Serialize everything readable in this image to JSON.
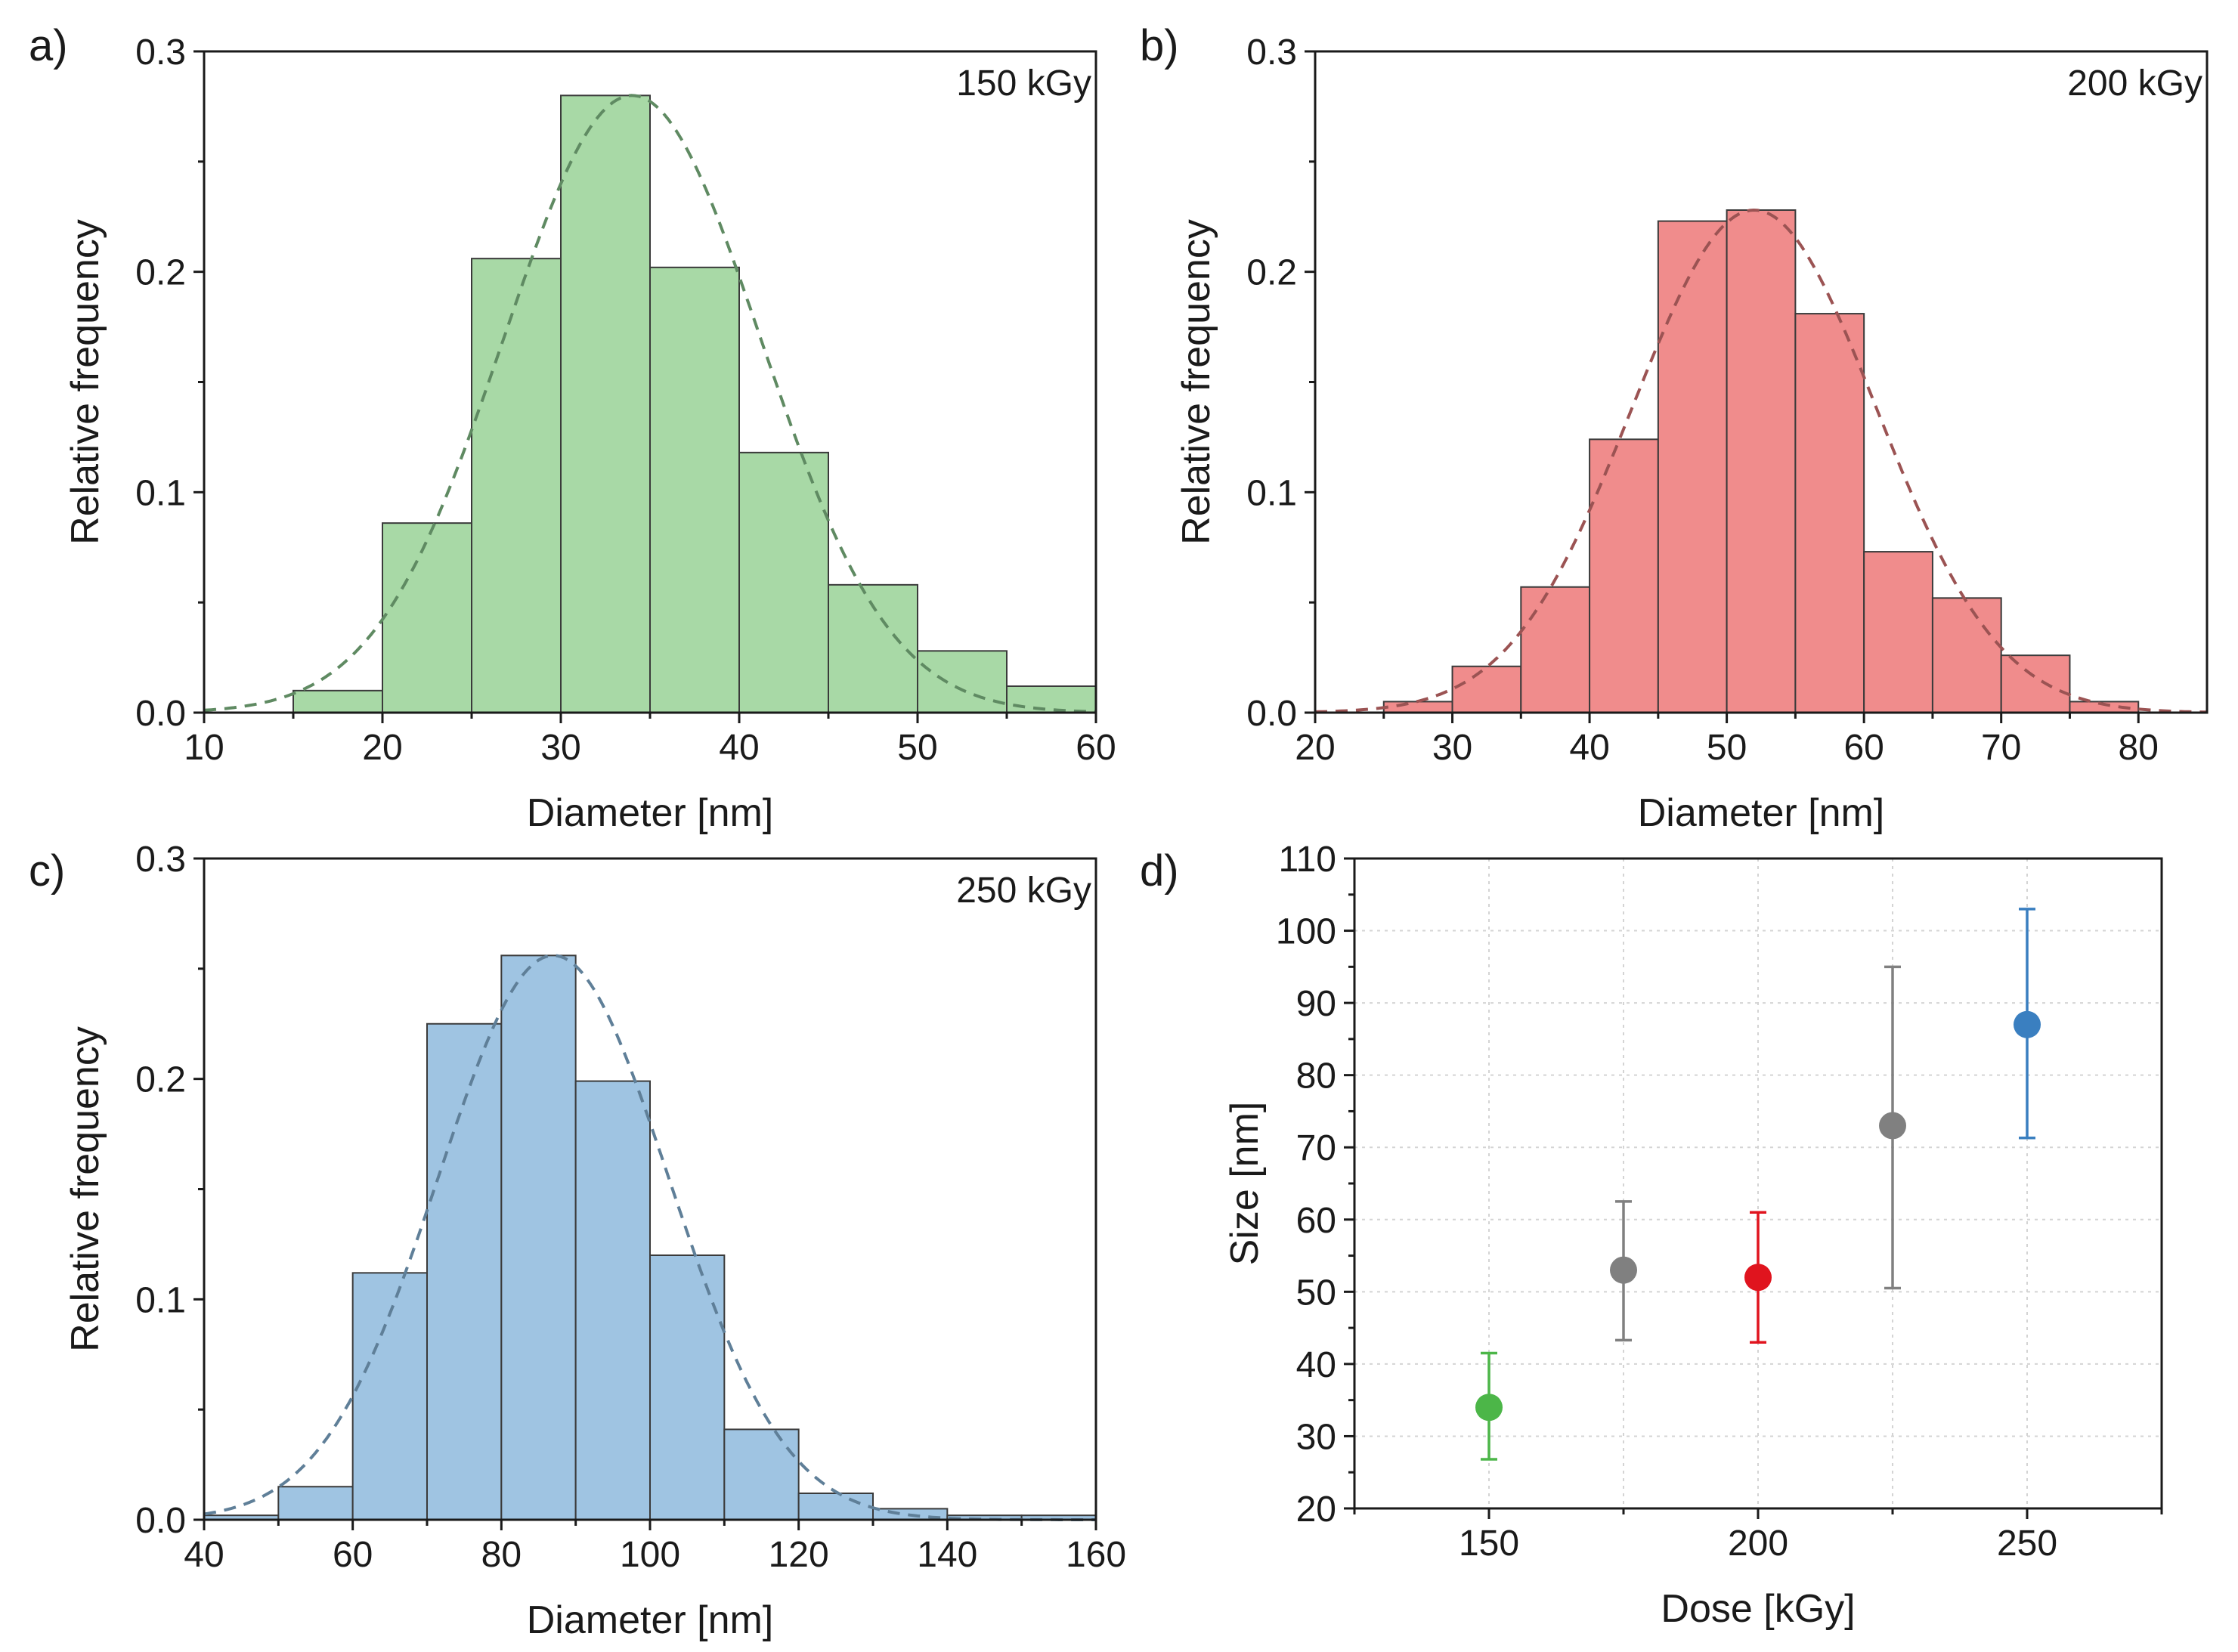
{
  "chart_data": [
    {
      "id": "a",
      "type": "bar",
      "panel_label": "a)",
      "annotation": "150 kGy",
      "xlabel": "Diameter [nm]",
      "ylabel": "Relative frequency",
      "xlim": [
        10,
        60
      ],
      "ylim": [
        0,
        0.3
      ],
      "xticks": [
        10,
        20,
        30,
        40,
        50,
        60
      ],
      "yticks": [
        0.0,
        0.1,
        0.2,
        0.3
      ],
      "bin_edges": [
        15,
        20,
        25,
        30,
        35,
        40,
        45,
        50,
        55,
        60
      ],
      "values": [
        0.01,
        0.086,
        0.206,
        0.28,
        0.202,
        0.118,
        0.058,
        0.028,
        0.012
      ],
      "fit": {
        "type": "gaussian",
        "mean": 34,
        "sd": 7.2,
        "peak": 0.28
      },
      "colors": {
        "bar": "#a8d9a6",
        "edge": "#3a3a3a",
        "fit": "#5f8a62"
      }
    },
    {
      "id": "b",
      "type": "bar",
      "panel_label": "b)",
      "annotation": "200 kGy",
      "xlabel": "Diameter [nm]",
      "ylabel": "Relative frequency",
      "xlim": [
        20,
        85
      ],
      "ylim": [
        0,
        0.3
      ],
      "xticks": [
        20,
        30,
        40,
        50,
        60,
        70,
        80
      ],
      "yticks": [
        0.0,
        0.1,
        0.2,
        0.3
      ],
      "bin_edges": [
        25,
        30,
        35,
        40,
        45,
        50,
        55,
        60,
        65,
        70,
        75,
        80
      ],
      "values": [
        0.005,
        0.021,
        0.057,
        0.124,
        0.223,
        0.228,
        0.181,
        0.073,
        0.052,
        0.026,
        0.005
      ],
      "fit": {
        "type": "gaussian",
        "mean": 52,
        "sd": 8.9,
        "peak": 0.228
      },
      "colors": {
        "bar": "#f08c8c",
        "edge": "#3a3a3a",
        "fit": "#9b5353"
      }
    },
    {
      "id": "c",
      "type": "bar",
      "panel_label": "c)",
      "annotation": "250 kGy",
      "xlabel": "Diameter [nm]",
      "ylabel": "Relative frequency",
      "xlim": [
        40,
        160
      ],
      "ylim": [
        0,
        0.3
      ],
      "xticks": [
        40,
        60,
        80,
        100,
        120,
        140,
        160
      ],
      "yticks": [
        0.0,
        0.1,
        0.2,
        0.3
      ],
      "bin_edges": [
        40,
        50,
        60,
        70,
        80,
        90,
        100,
        110,
        120,
        130,
        140,
        150,
        160
      ],
      "values": [
        0.002,
        0.015,
        0.112,
        0.225,
        0.256,
        0.199,
        0.12,
        0.041,
        0.012,
        0.005,
        0.002,
        0.002
      ],
      "fit": {
        "type": "gaussian",
        "mean": 87,
        "sd": 15.5,
        "peak": 0.256
      },
      "colors": {
        "bar": "#9fc4e2",
        "edge": "#3a3a3a",
        "fit": "#5f7f98"
      }
    },
    {
      "id": "d",
      "type": "scatter",
      "panel_label": "d)",
      "xlabel": "Dose [kGy]",
      "ylabel": "Size [nm]",
      "xlim": [
        125,
        275
      ],
      "ylim": [
        20,
        110
      ],
      "xticks": [
        150,
        200,
        250
      ],
      "yticks": [
        20,
        30,
        40,
        50,
        60,
        70,
        80,
        90,
        100,
        110
      ],
      "grid": true,
      "points": [
        {
          "x": 150,
          "y": 34,
          "err_low": 26.8,
          "err_high": 41.5,
          "color": "#4cb648"
        },
        {
          "x": 175,
          "y": 53,
          "err_low": 43.3,
          "err_high": 62.5,
          "color": "#808080"
        },
        {
          "x": 200,
          "y": 52,
          "err_low": 43,
          "err_high": 61,
          "color": "#e0141e"
        },
        {
          "x": 225,
          "y": 73,
          "err_low": 50.5,
          "err_high": 95,
          "color": "#808080"
        },
        {
          "x": 250,
          "y": 87,
          "err_low": 71.3,
          "err_high": 103,
          "color": "#3a7fc0"
        }
      ]
    }
  ]
}
